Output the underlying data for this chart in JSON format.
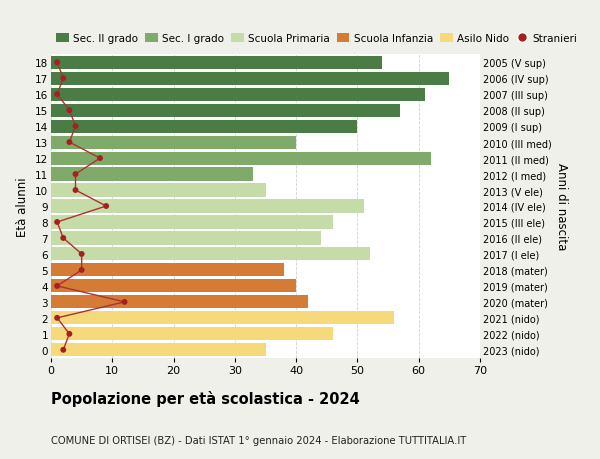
{
  "ages": [
    18,
    17,
    16,
    15,
    14,
    13,
    12,
    11,
    10,
    9,
    8,
    7,
    6,
    5,
    4,
    3,
    2,
    1,
    0
  ],
  "bar_values": [
    54,
    65,
    61,
    57,
    50,
    40,
    62,
    33,
    35,
    51,
    46,
    44,
    52,
    38,
    40,
    42,
    56,
    46,
    35
  ],
  "stranieri": [
    1,
    2,
    1,
    3,
    4,
    3,
    8,
    4,
    4,
    9,
    1,
    2,
    5,
    5,
    1,
    12,
    1,
    3,
    2
  ],
  "right_labels": [
    "2005 (V sup)",
    "2006 (IV sup)",
    "2007 (III sup)",
    "2008 (II sup)",
    "2009 (I sup)",
    "2010 (III med)",
    "2011 (II med)",
    "2012 (I med)",
    "2013 (V ele)",
    "2014 (IV ele)",
    "2015 (III ele)",
    "2016 (II ele)",
    "2017 (I ele)",
    "2018 (mater)",
    "2019 (mater)",
    "2020 (mater)",
    "2021 (nido)",
    "2022 (nido)",
    "2023 (nido)"
  ],
  "bar_colors": [
    "#4a7c45",
    "#4a7c45",
    "#4a7c45",
    "#4a7c45",
    "#4a7c45",
    "#7faa6a",
    "#7faa6a",
    "#7faa6a",
    "#c5dba8",
    "#c5dba8",
    "#c5dba8",
    "#c5dba8",
    "#c5dba8",
    "#d47c35",
    "#d47c35",
    "#d47c35",
    "#f5d97a",
    "#f5d97a",
    "#f5d97a"
  ],
  "legend_labels": [
    "Sec. II grado",
    "Sec. I grado",
    "Scuola Primaria",
    "Scuola Infanzia",
    "Asilo Nido",
    "Stranieri"
  ],
  "legend_colors": [
    "#4a7c45",
    "#7faa6a",
    "#c5dba8",
    "#d47c35",
    "#f5d97a",
    "#a52020"
  ],
  "title": "Popolazione per età scolastica - 2024",
  "subtitle": "COMUNE DI ORTISEI (BZ) - Dati ISTAT 1° gennaio 2024 - Elaborazione TUTTITALIA.IT",
  "ylabel": "Età alunni",
  "right_ylabel": "Anni di nascita",
  "xlim": [
    0,
    70
  ],
  "background_color": "#f0f0eb",
  "bar_background": "#ffffff",
  "stranieri_color": "#a52020",
  "stranieri_line_color": "#b03030",
  "grid_color": "#d0d0d0"
}
